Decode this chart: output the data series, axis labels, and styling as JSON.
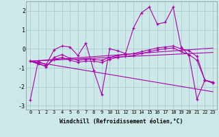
{
  "xlabel": "Windchill (Refroidissement éolien,°C)",
  "background_color": "#cce8e8",
  "line_color": "#aa00aa",
  "grid_color": "#aacccc",
  "x_hours": [
    0,
    1,
    2,
    3,
    4,
    5,
    6,
    7,
    8,
    9,
    10,
    11,
    12,
    13,
    14,
    15,
    16,
    17,
    18,
    19,
    20,
    21,
    22,
    23
  ],
  "main_line": [
    -2.7,
    -0.65,
    -0.85,
    -0.05,
    0.15,
    0.1,
    -0.35,
    0.3,
    -1.15,
    -2.4,
    0.0,
    -0.1,
    -0.25,
    1.1,
    1.9,
    2.2,
    1.3,
    1.4,
    2.2,
    0.1,
    -0.35,
    -2.65,
    -1.65,
    -1.8
  ],
  "line2": [
    -0.65,
    -0.75,
    -0.95,
    -0.45,
    -0.3,
    -0.5,
    -0.6,
    -0.55,
    -0.55,
    -0.6,
    -0.45,
    -0.35,
    -0.3,
    -0.25,
    -0.15,
    -0.05,
    0.05,
    0.1,
    0.15,
    0.0,
    -0.1,
    -0.4,
    -1.65,
    -1.75
  ],
  "line3": [
    -0.65,
    -0.8,
    -0.9,
    -0.55,
    -0.45,
    -0.6,
    -0.7,
    -0.65,
    -0.65,
    -0.72,
    -0.55,
    -0.45,
    -0.4,
    -0.35,
    -0.25,
    -0.15,
    -0.05,
    0.0,
    0.05,
    -0.15,
    -0.3,
    -0.6,
    -1.65,
    -1.8
  ],
  "trend_down1": [
    -0.65,
    -0.72,
    -0.79,
    -0.86,
    -0.93,
    -1.0,
    -1.07,
    -1.14,
    -1.21,
    -1.28,
    -1.35,
    -1.42,
    -1.49,
    -1.56,
    -1.63,
    -1.7,
    -1.77,
    -1.84,
    -1.91,
    -1.98,
    -2.05,
    -2.12,
    -2.19,
    -2.26
  ],
  "trend_flat1": [
    -0.65,
    -0.62,
    -0.59,
    -0.56,
    -0.53,
    -0.5,
    -0.47,
    -0.44,
    -0.41,
    -0.38,
    -0.35,
    -0.32,
    -0.29,
    -0.26,
    -0.23,
    -0.2,
    -0.17,
    -0.14,
    -0.11,
    -0.08,
    -0.05,
    -0.02,
    0.01,
    0.04
  ],
  "trend_flat2": [
    -0.65,
    -0.63,
    -0.61,
    -0.59,
    -0.57,
    -0.55,
    -0.53,
    -0.51,
    -0.49,
    -0.47,
    -0.45,
    -0.43,
    -0.41,
    -0.39,
    -0.37,
    -0.35,
    -0.33,
    -0.31,
    -0.29,
    -0.27,
    -0.25,
    -0.23,
    -0.21,
    -0.19
  ],
  "ylim": [
    -3.2,
    2.5
  ],
  "yticks": [
    -3,
    -2,
    -1,
    0,
    1,
    2
  ],
  "xlim": [
    -0.5,
    23.5
  ]
}
